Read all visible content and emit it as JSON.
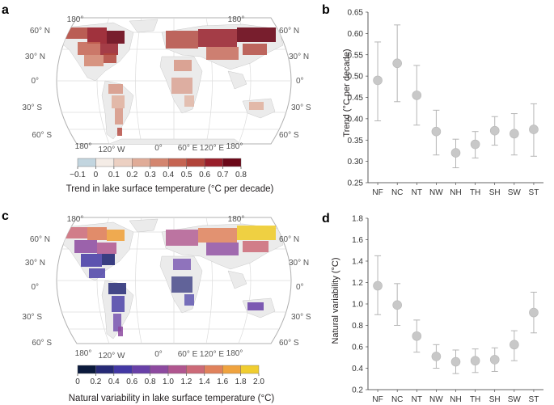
{
  "panels": {
    "a": "a",
    "b": "b",
    "c": "c",
    "d": "d"
  },
  "map_labels": {
    "lat_left": [
      "60° N",
      "30° N",
      "0°",
      "30° S",
      "60° S"
    ],
    "lat_right": [
      "60° N",
      "30° N",
      "0°",
      "30° S",
      "60° S"
    ],
    "top_lon": [
      "180°",
      "180°"
    ],
    "bottom_lon": [
      "180°",
      "120° W",
      "0°",
      "60° E",
      "120° E",
      "180°"
    ]
  },
  "colorbar_a": {
    "title": "Trend in lake surface temperature (°C per decade)",
    "ticks": [
      "−0.1",
      "0",
      "0.1",
      "0.2",
      "0.3",
      "0.4",
      "0.5",
      "0.6",
      "0.7",
      "0.8"
    ],
    "colors": [
      "#c2d5df",
      "#f4ece6",
      "#ecd0c2",
      "#e0ac98",
      "#d3856f",
      "#c56452",
      "#b1443a",
      "#981e2a",
      "#6b0818"
    ]
  },
  "colorbar_c": {
    "title": "Natural variability in lake surface temperature (°C)",
    "ticks": [
      "0",
      "0.2",
      "0.4",
      "0.6",
      "0.8",
      "1.0",
      "1.2",
      "1.4",
      "1.6",
      "1.8",
      "2.0"
    ],
    "colors": [
      "#0b1a3c",
      "#262a76",
      "#4338a4",
      "#6840a8",
      "#8d4aa0",
      "#b0568f",
      "#cc6a78",
      "#e0825c",
      "#efa33f",
      "#f0cd30"
    ]
  },
  "chart_data": [
    {
      "type": "scatter",
      "panel": "b",
      "categories": [
        "NF",
        "NC",
        "NT",
        "NW",
        "NH",
        "TH",
        "SH",
        "SW",
        "ST"
      ],
      "values": [
        0.49,
        0.53,
        0.455,
        0.37,
        0.32,
        0.34,
        0.372,
        0.365,
        0.375
      ],
      "err_low": [
        0.395,
        0.44,
        0.385,
        0.315,
        0.285,
        0.308,
        0.338,
        0.315,
        0.312
      ],
      "err_high": [
        0.58,
        0.62,
        0.525,
        0.42,
        0.352,
        0.37,
        0.405,
        0.412,
        0.435
      ],
      "ylabel": "Trend (°C per decade)",
      "ylim": [
        0.25,
        0.65
      ],
      "yticks": [
        "0.25",
        "0.30",
        "0.35",
        "0.40",
        "0.45",
        "0.50",
        "0.55",
        "0.60",
        "0.65"
      ],
      "ytick_values": [
        0.25,
        0.3,
        0.35,
        0.4,
        0.45,
        0.5,
        0.55,
        0.6,
        0.65
      ],
      "grid": false,
      "marker_color": "#c8c8c8",
      "errorbar_color": "#b5b5b5"
    },
    {
      "type": "scatter",
      "panel": "d",
      "categories": [
        "NF",
        "NC",
        "NT",
        "NW",
        "NH",
        "TH",
        "SH",
        "SW",
        "ST"
      ],
      "values": [
        1.17,
        0.99,
        0.7,
        0.51,
        0.46,
        0.47,
        0.48,
        0.62,
        0.92
      ],
      "err_low": [
        0.9,
        0.8,
        0.55,
        0.4,
        0.35,
        0.36,
        0.37,
        0.47,
        0.73
      ],
      "err_high": [
        1.45,
        1.19,
        0.85,
        0.62,
        0.57,
        0.58,
        0.59,
        0.75,
        1.11
      ],
      "ylabel": "Natural variability (°C)",
      "ylim": [
        0.2,
        1.8
      ],
      "yticks": [
        "0.2",
        "0.4",
        "0.6",
        "0.8",
        "1.0",
        "1.2",
        "1.4",
        "1.6",
        "1.8"
      ],
      "ytick_values": [
        0.2,
        0.4,
        0.6,
        0.8,
        1.0,
        1.2,
        1.4,
        1.6,
        1.8
      ],
      "grid": false,
      "marker_color": "#c8c8c8",
      "errorbar_color": "#b5b5b5"
    }
  ]
}
